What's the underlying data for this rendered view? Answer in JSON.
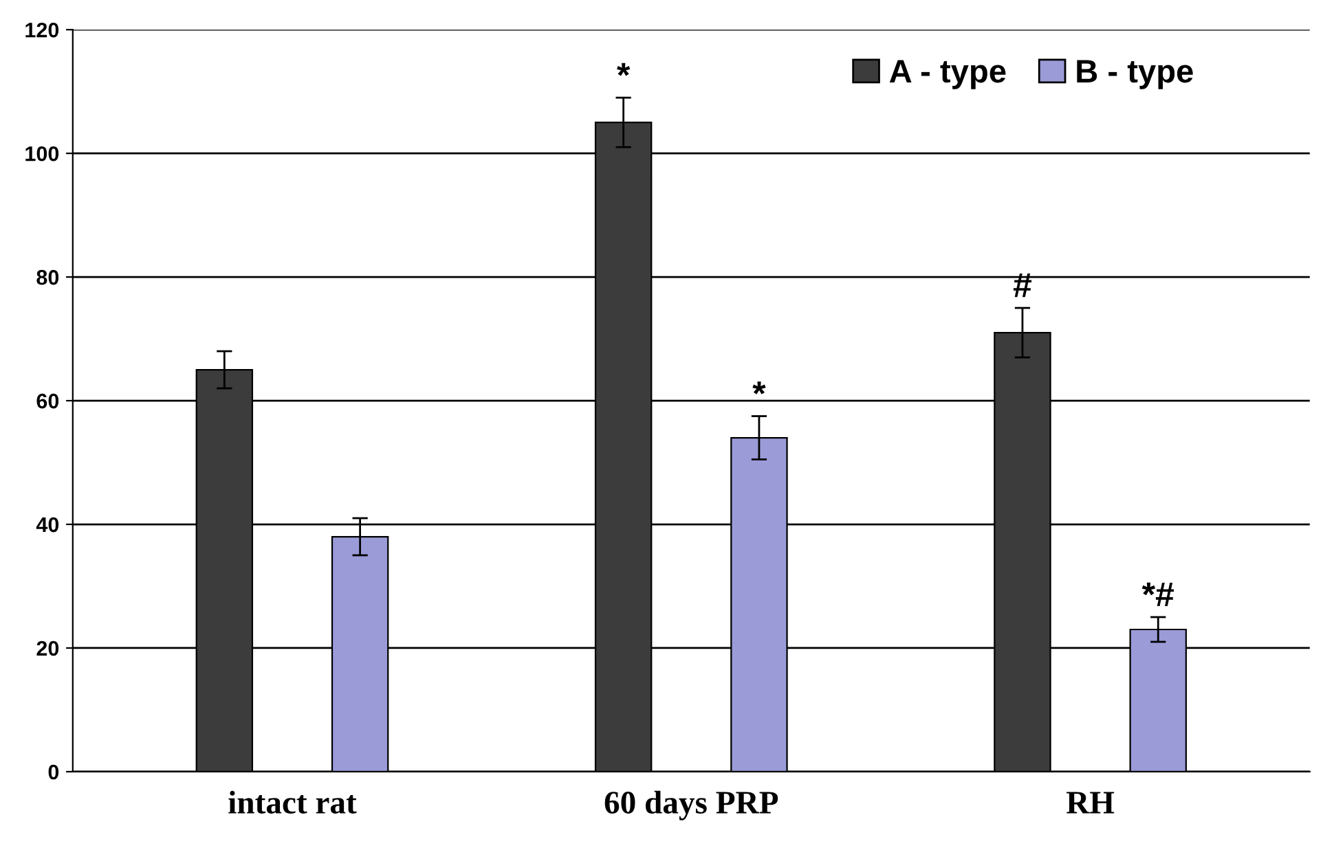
{
  "chart_data": {
    "type": "bar",
    "categories": [
      "intact rat",
      "60 days PRP",
      "RH"
    ],
    "series": [
      {
        "name": "A - type",
        "color": "#3c3c3c",
        "values": [
          65,
          105,
          71
        ],
        "errors": [
          3,
          4,
          4
        ]
      },
      {
        "name": "B - type",
        "color": "#9b9bd8",
        "values": [
          38,
          54,
          23
        ],
        "errors": [
          3,
          3.5,
          2
        ]
      }
    ],
    "ylim": [
      0,
      120
    ],
    "yticks": [
      0,
      20,
      40,
      60,
      80,
      100,
      120
    ],
    "grid": "y",
    "legend": "top right",
    "annotations": [
      "*",
      "*",
      "#",
      "*#"
    ]
  }
}
